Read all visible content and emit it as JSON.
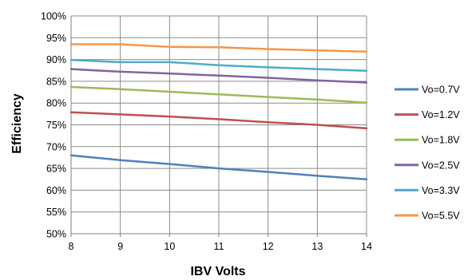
{
  "chart_data": {
    "type": "line",
    "title": "",
    "xlabel": "IBV Volts",
    "ylabel": "Efficiency",
    "x": [
      8,
      9,
      10,
      11,
      12,
      13,
      14
    ],
    "x_tick_labels": [
      "8",
      "9",
      "10",
      "11",
      "12",
      "13",
      "14"
    ],
    "xlim": [
      8,
      14
    ],
    "ylim": [
      50,
      100
    ],
    "y_tick_values": [
      50,
      55,
      60,
      65,
      70,
      75,
      80,
      85,
      90,
      95,
      100
    ],
    "y_tick_labels": [
      "50%",
      "55%",
      "60%",
      "65%",
      "70%",
      "75%",
      "80%",
      "85%",
      "90%",
      "95%",
      "100%"
    ],
    "grid": true,
    "legend_position": "right",
    "series": [
      {
        "name": "Vo=0.7V",
        "color": "#4F81BD",
        "values": [
          68.0,
          66.9,
          66.0,
          65.0,
          64.2,
          63.3,
          62.5
        ]
      },
      {
        "name": "Vo=1.2V",
        "color": "#C0504D",
        "values": [
          77.9,
          77.4,
          76.9,
          76.3,
          75.6,
          75.0,
          74.2
        ]
      },
      {
        "name": "Vo=1.8V",
        "color": "#9BBB59",
        "values": [
          83.7,
          83.2,
          82.6,
          82.0,
          81.4,
          80.8,
          80.1
        ]
      },
      {
        "name": "Vo=2.5V",
        "color": "#8064A2",
        "values": [
          87.8,
          87.2,
          86.8,
          86.3,
          85.8,
          85.2,
          84.7
        ]
      },
      {
        "name": "Vo=3.3V",
        "color": "#4BACC6",
        "values": [
          89.9,
          89.4,
          89.4,
          88.7,
          88.2,
          87.8,
          87.4
        ]
      },
      {
        "name": "Vo=5.5V",
        "color": "#F79646",
        "values": [
          93.5,
          93.5,
          92.9,
          92.8,
          92.4,
          92.1,
          91.8
        ]
      }
    ]
  }
}
